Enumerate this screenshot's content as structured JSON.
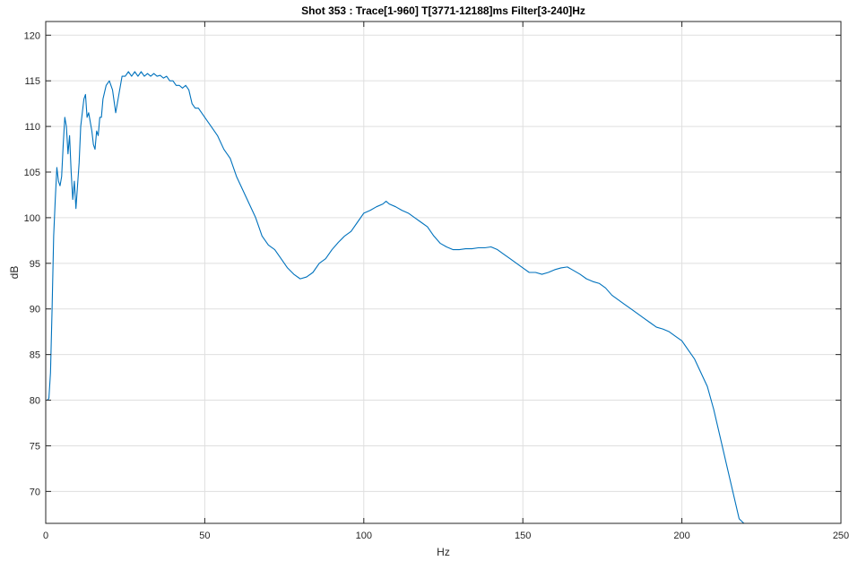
{
  "chart_data": {
    "type": "line",
    "title": "Shot 353 : Trace[1-960] T[3771-12188]ms Filter[3-240]Hz",
    "xlabel": "Hz",
    "ylabel": "dB",
    "xlim": [
      0,
      250
    ],
    "ylim": [
      66.5,
      121.5
    ],
    "xticks": [
      0,
      50,
      100,
      150,
      200,
      250
    ],
    "yticks": [
      70,
      75,
      80,
      85,
      90,
      95,
      100,
      105,
      110,
      115,
      120
    ],
    "grid": true,
    "series": [
      {
        "color": "#0072bd",
        "x": [
          0.5,
          1.0,
          1.5,
          2.0,
          2.5,
          3.0,
          3.5,
          4.0,
          4.5,
          5.0,
          5.5,
          6.0,
          6.5,
          7.0,
          7.5,
          8.0,
          8.5,
          9.0,
          9.5,
          10.0,
          10.5,
          11.0,
          11.5,
          12.0,
          12.5,
          13.0,
          13.5,
          14.0,
          14.5,
          15.0,
          15.5,
          16.0,
          16.5,
          17.0,
          17.5,
          18.0,
          19.0,
          20.0,
          21.0,
          22.0,
          23.0,
          24.0,
          25.0,
          26.0,
          27.0,
          28.0,
          29.0,
          30.0,
          31.0,
          32.0,
          33.0,
          34.0,
          35.0,
          36.0,
          37.0,
          38.0,
          39.0,
          40.0,
          41.0,
          42.0,
          43.0,
          44.0,
          45.0,
          46.0,
          47.0,
          48.0,
          49.0,
          50.0,
          52.0,
          54.0,
          56.0,
          58.0,
          60.0,
          62.0,
          64.0,
          66.0,
          68.0,
          70.0,
          72.0,
          74.0,
          76.0,
          78.0,
          80.0,
          82.0,
          84.0,
          86.0,
          88.0,
          90.0,
          92.0,
          94.0,
          96.0,
          98.0,
          100.0,
          102.0,
          104.0,
          106.0,
          107.0,
          108.0,
          110.0,
          112.0,
          114.0,
          116.0,
          118.0,
          120.0,
          122.0,
          124.0,
          126.0,
          128.0,
          130.0,
          132.0,
          134.0,
          136.0,
          138.0,
          140.0,
          142.0,
          144.0,
          146.0,
          148.0,
          150.0,
          152.0,
          154.0,
          156.0,
          158.0,
          160.0,
          162.0,
          164.0,
          166.0,
          168.0,
          170.0,
          172.0,
          174.0,
          176.0,
          178.0,
          180.0,
          182.0,
          184.0,
          186.0,
          188.0,
          190.0,
          192.0,
          194.0,
          196.0,
          198.0,
          200.0,
          202.0,
          204.0,
          206.0,
          208.0,
          210.0,
          212.0,
          214.0,
          216.0,
          218.0,
          219.5
        ],
        "y": [
          80.0,
          80.2,
          83.0,
          90.0,
          98.0,
          102.0,
          105.5,
          104.0,
          103.5,
          104.5,
          108.0,
          111.0,
          110.0,
          107.0,
          109.0,
          105.0,
          102.0,
          104.0,
          101.0,
          103.5,
          106.0,
          110.0,
          111.5,
          113.0,
          113.5,
          111.0,
          111.5,
          110.5,
          109.5,
          108.0,
          107.5,
          109.5,
          109.0,
          111.0,
          111.0,
          113.0,
          114.5,
          115.0,
          114.0,
          111.5,
          113.5,
          115.5,
          115.5,
          116.0,
          115.5,
          116.0,
          115.5,
          116.0,
          115.5,
          115.8,
          115.5,
          115.8,
          115.5,
          115.6,
          115.3,
          115.5,
          115.0,
          115.0,
          114.5,
          114.5,
          114.2,
          114.5,
          114.0,
          112.5,
          112.0,
          112.0,
          111.5,
          111.0,
          110.0,
          109.0,
          107.5,
          106.5,
          104.5,
          103.0,
          101.5,
          100.0,
          98.0,
          97.0,
          96.5,
          95.5,
          94.5,
          93.8,
          93.3,
          93.5,
          94.0,
          95.0,
          95.5,
          96.5,
          97.3,
          98.0,
          98.5,
          99.5,
          100.5,
          100.8,
          101.2,
          101.5,
          101.8,
          101.5,
          101.2,
          100.8,
          100.5,
          100.0,
          99.5,
          99.0,
          98.0,
          97.2,
          96.8,
          96.5,
          96.5,
          96.6,
          96.6,
          96.7,
          96.7,
          96.8,
          96.5,
          96.0,
          95.5,
          95.0,
          94.5,
          94.0,
          94.0,
          93.8,
          94.0,
          94.3,
          94.5,
          94.6,
          94.2,
          93.8,
          93.3,
          93.0,
          92.8,
          92.3,
          91.5,
          91.0,
          90.5,
          90.0,
          89.5,
          89.0,
          88.5,
          88.0,
          87.8,
          87.5,
          87.0,
          86.5,
          85.5,
          84.5,
          83.0,
          81.5,
          79.0,
          76.0,
          73.0,
          70.0,
          67.0,
          66.5
        ]
      }
    ]
  }
}
